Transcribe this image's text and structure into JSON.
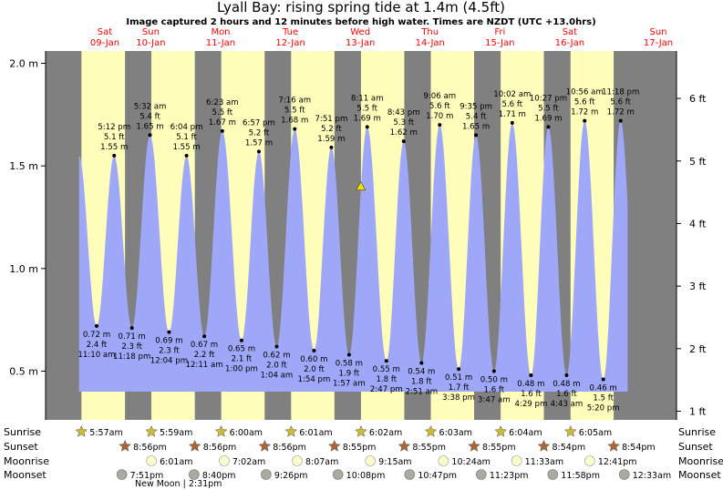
{
  "title": "Lyall Bay: rising  spring tide at 1.4m (4.5ft)",
  "subtitle": "Image captured 2 hours and 12 minutes before high water. Times are NZDT (UTC +13.0hrs)",
  "colors": {
    "day": "#ffffbb",
    "night": "#808080",
    "tide": "#9fa8f8",
    "day_label": "#ff0000",
    "sun_icon": "#ccbb33",
    "sunset_icon": "#aa6633",
    "moonrise_icon": "#ffffcc",
    "moonset_icon": "#aaaaa0"
  },
  "chart_data": {
    "type": "area",
    "title": "Lyall Bay: rising  spring tide at 1.4m (4.5ft)",
    "ylim_m": [
      0.22,
      2.1
    ],
    "left_axis_ticks": [
      "0.5 m",
      "1.0 m",
      "1.5 m",
      "2.0 m"
    ],
    "left_axis_values": [
      0.5,
      1.0,
      1.5,
      2.0
    ],
    "right_axis_ticks": [
      "1 ft",
      "2 ft",
      "3 ft",
      "4 ft",
      "5 ft",
      "6 ft"
    ],
    "right_axis_values_ft": [
      1,
      2,
      3,
      4,
      5,
      6
    ],
    "days": [
      {
        "dow": "Sat",
        "date": "09-Jan"
      },
      {
        "dow": "Sun",
        "date": "10-Jan"
      },
      {
        "dow": "Mon",
        "date": "11-Jan"
      },
      {
        "dow": "Tue",
        "date": "12-Jan"
      },
      {
        "dow": "Wed",
        "date": "13-Jan"
      },
      {
        "dow": "Thu",
        "date": "14-Jan"
      },
      {
        "dow": "Fri",
        "date": "15-Jan"
      },
      {
        "dow": "Sat",
        "date": "16-Jan"
      },
      {
        "dow": "Sun",
        "date": "17-Jan"
      }
    ],
    "tides": [
      {
        "type": "low",
        "time": "11:10 am",
        "m": "0.72 m",
        "ft": "2.4 ft",
        "t": 11.17,
        "v": 0.72
      },
      {
        "type": "high",
        "time": "5:12 pm",
        "m": "1.55 m",
        "ft": "5.1 ft",
        "t": 17.2,
        "v": 1.55
      },
      {
        "type": "low",
        "time": "11:18 pm",
        "m": "0.71 m",
        "ft": "2.3 ft",
        "t": 23.3,
        "v": 0.71
      },
      {
        "type": "high",
        "time": "5:32 am",
        "m": "1.65 m",
        "ft": "5.4 ft",
        "t": 29.53,
        "v": 1.65
      },
      {
        "type": "low",
        "time": "12:04 pm",
        "m": "0.69 m",
        "ft": "2.3 ft",
        "t": 36.07,
        "v": 0.69
      },
      {
        "type": "high",
        "time": "6:04 pm",
        "m": "1.55 m",
        "ft": "5.1 ft",
        "t": 42.07,
        "v": 1.55
      },
      {
        "type": "low",
        "time": "12:11 am",
        "m": "0.67 m",
        "ft": "2.2 ft",
        "t": 48.18,
        "v": 0.67
      },
      {
        "type": "high",
        "time": "6:23 am",
        "m": "1.67 m",
        "ft": "5.5 ft",
        "t": 54.38,
        "v": 1.67
      },
      {
        "type": "low",
        "time": "1:00 pm",
        "m": "0.65 m",
        "ft": "2.1 ft",
        "t": 61.0,
        "v": 0.65
      },
      {
        "type": "high",
        "time": "6:57 pm",
        "m": "1.57 m",
        "ft": "5.2 ft",
        "t": 66.95,
        "v": 1.57
      },
      {
        "type": "low",
        "time": "1:04 am",
        "m": "0.62 m",
        "ft": "2.0 ft",
        "t": 73.07,
        "v": 0.62
      },
      {
        "type": "high",
        "time": "7:16 am",
        "m": "1.68 m",
        "ft": "5.5 ft",
        "t": 79.27,
        "v": 1.68
      },
      {
        "type": "low",
        "time": "1:54 pm",
        "m": "0.60 m",
        "ft": "2.0 ft",
        "t": 85.9,
        "v": 0.6
      },
      {
        "type": "high",
        "time": "7:51 pm",
        "m": "1.59 m",
        "ft": "5.2 ft",
        "t": 91.85,
        "v": 1.59
      },
      {
        "type": "low",
        "time": "1:57 am",
        "m": "0.58 m",
        "ft": "1.9 ft",
        "t": 97.95,
        "v": 0.58
      },
      {
        "type": "high",
        "time": "8:11 am",
        "m": "1.69 m",
        "ft": "5.5 ft",
        "t": 104.18,
        "v": 1.69
      },
      {
        "type": "low",
        "time": "2:47 pm",
        "m": "0.55 m",
        "ft": "1.8 ft",
        "t": 110.78,
        "v": 0.55
      },
      {
        "type": "high",
        "time": "8:43 pm",
        "m": "1.62 m",
        "ft": "5.3 ft",
        "t": 116.72,
        "v": 1.62
      },
      {
        "type": "low",
        "time": "2:51 am",
        "m": "0.54 m",
        "ft": "1.8 ft",
        "t": 122.85,
        "v": 0.54
      },
      {
        "type": "high",
        "time": "9:06 am",
        "m": "1.70 m",
        "ft": "5.6 ft",
        "t": 129.1,
        "v": 1.7
      },
      {
        "type": "low",
        "time": "3:38 pm",
        "m": "0.51 m",
        "ft": "1.7 ft",
        "t": 135.63,
        "v": 0.51
      },
      {
        "type": "high",
        "time": "9:35 pm",
        "m": "1.65 m",
        "ft": "5.4 ft",
        "t": 141.58,
        "v": 1.65
      },
      {
        "type": "low",
        "time": "3:47 am",
        "m": "0.50 m",
        "ft": "1.6 ft",
        "t": 147.78,
        "v": 0.5
      },
      {
        "type": "high",
        "time": "10:02 am",
        "m": "1.71 m",
        "ft": "5.6 ft",
        "t": 154.03,
        "v": 1.71
      },
      {
        "type": "low",
        "time": "4:29 pm",
        "m": "0.48 m",
        "ft": "1.6 ft",
        "t": 160.48,
        "v": 0.48
      },
      {
        "type": "high",
        "time": "10:27 pm",
        "m": "1.69 m",
        "ft": "5.5 ft",
        "t": 166.45,
        "v": 1.69
      },
      {
        "type": "low",
        "time": "4:43 am",
        "m": "0.48 m",
        "ft": "1.6 ft",
        "t": 172.72,
        "v": 0.48
      },
      {
        "type": "high",
        "time": "10:56 am",
        "m": "1.72 m",
        "ft": "5.6 ft",
        "t": 178.93,
        "v": 1.72
      },
      {
        "type": "low",
        "time": "5:20 pm",
        "m": "0.46 m",
        "ft": "1.5 ft",
        "t": 185.33,
        "v": 0.46
      },
      {
        "type": "high",
        "time": "11:18 pm",
        "m": "1.72 m",
        "ft": "5.6 ft",
        "t": 191.3,
        "v": 1.72
      }
    ],
    "current": {
      "value_m": 1.4,
      "t": 101.98
    },
    "range_hours": [
      -6.37,
      210.5
    ]
  },
  "rows": {
    "labels": [
      "Sunrise",
      "Sunset",
      "Moonrise",
      "Moonset"
    ],
    "sunrise": [
      {
        "time": "5:57am",
        "t": 5.95
      },
      {
        "time": "5:59am",
        "t": 29.98
      },
      {
        "time": "6:00am",
        "t": 54.0
      },
      {
        "time": "6:01am",
        "t": 78.02
      },
      {
        "time": "6:02am",
        "t": 102.03
      },
      {
        "time": "6:03am",
        "t": 126.05
      },
      {
        "time": "6:04am",
        "t": 150.07
      },
      {
        "time": "6:05am",
        "t": 174.08
      }
    ],
    "sunset": [
      {
        "time": "8:56pm",
        "t": 20.93
      },
      {
        "time": "8:56pm",
        "t": 44.93
      },
      {
        "time": "8:56pm",
        "t": 68.93
      },
      {
        "time": "8:55pm",
        "t": 92.92
      },
      {
        "time": "8:55pm",
        "t": 116.92
      },
      {
        "time": "8:55pm",
        "t": 140.92
      },
      {
        "time": "8:54pm",
        "t": 164.9
      },
      {
        "time": "8:54pm",
        "t": 188.9
      }
    ],
    "moonrise": [
      {
        "time": "6:01am",
        "t": 30.02
      },
      {
        "time": "7:02am",
        "t": 55.03
      },
      {
        "time": "8:07am",
        "t": 80.12
      },
      {
        "time": "9:15am",
        "t": 105.25
      },
      {
        "time": "10:24am",
        "t": 130.4
      },
      {
        "time": "11:33am",
        "t": 155.55
      },
      {
        "time": "12:41pm",
        "t": 180.68
      }
    ],
    "moonset": [
      {
        "time": "7:51pm",
        "t": 19.85
      },
      {
        "time": "8:40pm",
        "t": 44.67
      },
      {
        "time": "9:26pm",
        "t": 69.43
      },
      {
        "time": "10:08pm",
        "t": 94.13
      },
      {
        "time": "10:47pm",
        "t": 118.78
      },
      {
        "time": "11:23pm",
        "t": 143.38
      },
      {
        "time": "11:58pm",
        "t": 167.97
      },
      {
        "time": "12:33am",
        "t": 192.55
      }
    ],
    "new_moon": "New Moon | 2:31pm"
  }
}
